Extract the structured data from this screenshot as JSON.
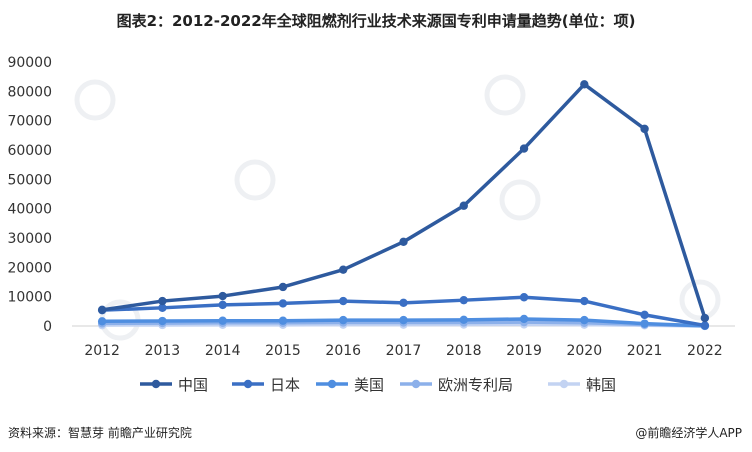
{
  "title": "图表2：2012-2022年全球阻燃剂行业技术来源国专利申请量趋势(单位：项)",
  "source": "资料来源：智慧芽 前瞻产业研究院",
  "brand": "@前瞻经济学人APP",
  "colors": {
    "中国": "#2e5a9e",
    "日本": "#3a6fc4",
    "美国": "#4f8ee0",
    "欧洲专利局": "#8cb0ea",
    "韩国": "#c3d3f2"
  },
  "chart_data": {
    "type": "line",
    "categories": [
      "2012",
      "2013",
      "2014",
      "2015",
      "2016",
      "2017",
      "2018",
      "2019",
      "2020",
      "2021",
      "2022"
    ],
    "ylim": [
      0,
      90000
    ],
    "yticks": [
      0,
      10000,
      20000,
      30000,
      40000,
      50000,
      60000,
      70000,
      80000,
      90000
    ],
    "legend_position": "bottom",
    "grid": false,
    "series": [
      {
        "name": "中国",
        "values": [
          5500,
          8500,
          10200,
          13300,
          19200,
          28700,
          41000,
          60500,
          82400,
          67200,
          2700
        ]
      },
      {
        "name": "日本",
        "values": [
          5400,
          6200,
          7200,
          7700,
          8500,
          7900,
          8800,
          9800,
          8500,
          3800,
          200
        ]
      },
      {
        "name": "美国",
        "values": [
          1600,
          1700,
          1800,
          1800,
          2000,
          2000,
          2100,
          2400,
          2000,
          800,
          50
        ]
      },
      {
        "name": "欧洲专利局",
        "values": [
          900,
          1000,
          1100,
          1100,
          1200,
          1200,
          1200,
          1300,
          1100,
          500,
          30
        ]
      },
      {
        "name": "韩国",
        "values": [
          300,
          350,
          400,
          400,
          450,
          450,
          500,
          550,
          450,
          250,
          20
        ]
      }
    ]
  }
}
